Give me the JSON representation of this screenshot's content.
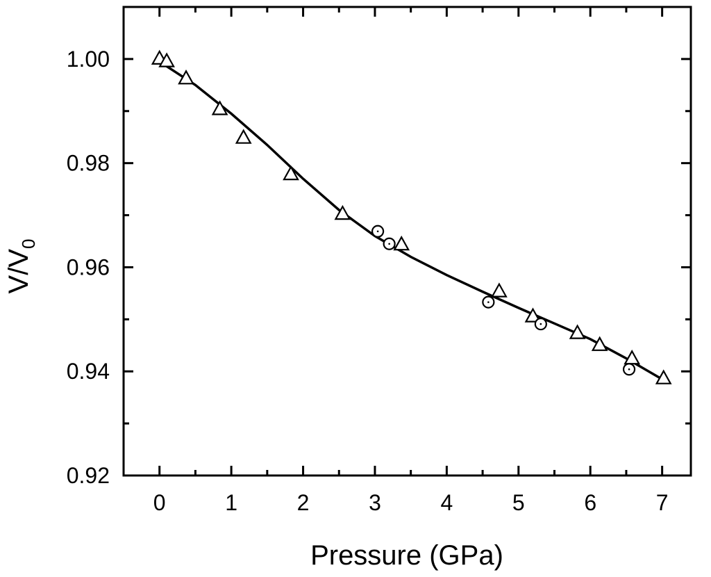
{
  "chart_data": {
    "type": "scatter",
    "xlabel": "Pressure (GPa)",
    "ylabel": {
      "main": "V/V",
      "subscript": "0"
    },
    "xlim": [
      -0.5,
      7.4
    ],
    "ylim": [
      0.92,
      1.01
    ],
    "x_ticks": [
      0,
      1,
      2,
      3,
      4,
      5,
      6,
      7
    ],
    "x_tick_labels": [
      "0",
      "1",
      "2",
      "3",
      "4",
      "5",
      "6",
      "7"
    ],
    "y_ticks": [
      0.92,
      0.94,
      0.96,
      0.98,
      1.0
    ],
    "y_tick_labels": [
      "0.92",
      "0.94",
      "0.96",
      "0.98",
      "1.00"
    ],
    "y_minor_ticks": [
      0.93,
      0.95,
      0.97,
      0.99
    ],
    "grid": false,
    "series": [
      {
        "marker": "triangle",
        "points": [
          [
            0.0,
            1.0
          ],
          [
            0.1,
            0.9995
          ],
          [
            0.37,
            0.9962
          ],
          [
            0.84,
            0.9903
          ],
          [
            1.17,
            0.9848
          ],
          [
            1.83,
            0.9778
          ],
          [
            2.55,
            0.9702
          ],
          [
            3.37,
            0.9643
          ],
          [
            4.73,
            0.9553
          ],
          [
            5.2,
            0.9505
          ],
          [
            5.82,
            0.9473
          ],
          [
            6.13,
            0.945
          ],
          [
            6.58,
            0.9424
          ],
          [
            7.02,
            0.9386
          ]
        ]
      },
      {
        "marker": "circle",
        "points": [
          [
            3.04,
            0.9669
          ],
          [
            3.2,
            0.9645
          ],
          [
            4.58,
            0.9533
          ],
          [
            5.31,
            0.9491
          ],
          [
            6.54,
            0.9404
          ]
        ]
      }
    ],
    "fit_curve": {
      "style": "solid-line",
      "points": [
        [
          0.0,
          0.9995
        ],
        [
          0.5,
          0.995
        ],
        [
          1.0,
          0.9895
        ],
        [
          1.5,
          0.9835
        ],
        [
          2.0,
          0.977
        ],
        [
          2.5,
          0.971
        ],
        [
          3.0,
          0.966
        ],
        [
          3.5,
          0.962
        ],
        [
          4.0,
          0.9585
        ],
        [
          4.5,
          0.9553
        ],
        [
          5.0,
          0.9522
        ],
        [
          5.5,
          0.9492
        ],
        [
          6.0,
          0.9462
        ],
        [
          6.5,
          0.9425
        ],
        [
          7.0,
          0.9385
        ]
      ]
    }
  }
}
